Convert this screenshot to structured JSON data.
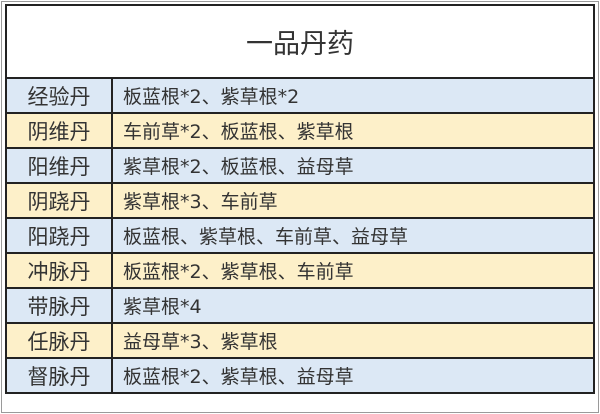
{
  "title": "一品丹药",
  "colors": {
    "row_blue": "#dce8f5",
    "row_yellow": "#fdf0c9",
    "border": "#222222"
  },
  "rows": [
    {
      "name": "经验丹",
      "recipe": "板蓝根*2、紫草根*2",
      "color": "blue"
    },
    {
      "name": "阴维丹",
      "recipe": "车前草*2、板蓝根、紫草根",
      "color": "yellow"
    },
    {
      "name": "阳维丹",
      "recipe": "紫草根*2、板蓝根、益母草",
      "color": "blue"
    },
    {
      "name": "阴跷丹",
      "recipe": "紫草根*3、车前草",
      "color": "yellow"
    },
    {
      "name": "阳跷丹",
      "recipe": "板蓝根、紫草根、车前草、益母草",
      "color": "blue"
    },
    {
      "name": "冲脉丹",
      "recipe": "板蓝根*2、紫草根、车前草",
      "color": "yellow"
    },
    {
      "name": "带脉丹",
      "recipe": "紫草根*4",
      "color": "blue"
    },
    {
      "name": "任脉丹",
      "recipe": "益母草*3、紫草根",
      "color": "yellow"
    },
    {
      "name": "督脉丹",
      "recipe": "板蓝根*2、紫草根、益母草",
      "color": "blue"
    }
  ]
}
